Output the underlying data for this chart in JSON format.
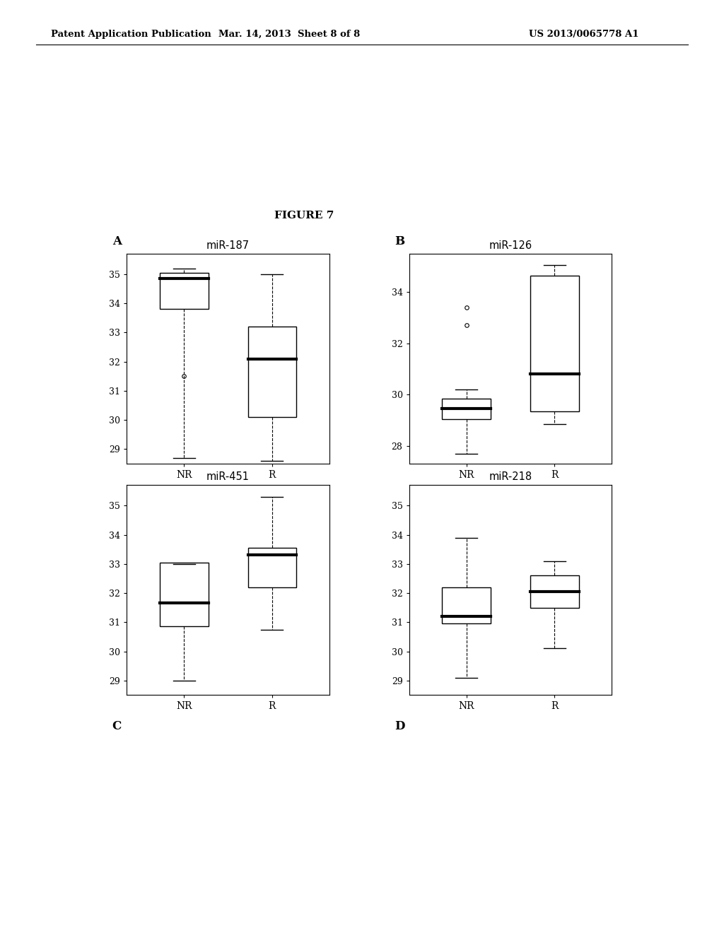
{
  "figure_title": "FIGURE 7",
  "panel_labels": [
    "A",
    "B",
    "C",
    "D"
  ],
  "plots": [
    {
      "title": "miR-187",
      "NR": {
        "whisker_low": 28.7,
        "q1": 33.8,
        "median": 34.85,
        "q3": 35.05,
        "whisker_high": 35.2,
        "outliers": [
          31.5
        ]
      },
      "R": {
        "whisker_low": 28.6,
        "q1": 30.1,
        "median": 32.1,
        "q3": 33.2,
        "whisker_high": 35.0,
        "outliers": []
      },
      "ylim": [
        28.5,
        35.7
      ],
      "yticks": [
        29,
        30,
        31,
        32,
        33,
        34,
        35
      ]
    },
    {
      "title": "miR-126",
      "NR": {
        "whisker_low": 27.7,
        "q1": 29.05,
        "median": 29.45,
        "q3": 29.85,
        "whisker_high": 30.2,
        "outliers": [
          33.4,
          32.7
        ]
      },
      "R": {
        "whisker_low": 28.85,
        "q1": 29.35,
        "median": 30.8,
        "q3": 34.65,
        "whisker_high": 35.05,
        "outliers": []
      },
      "ylim": [
        27.3,
        35.5
      ],
      "yticks": [
        28,
        30,
        32,
        34
      ]
    },
    {
      "title": "miR-451",
      "NR": {
        "whisker_low": 29.0,
        "q1": 30.85,
        "median": 31.65,
        "q3": 33.05,
        "whisker_high": 33.0,
        "outliers": []
      },
      "R": {
        "whisker_low": 30.75,
        "q1": 32.2,
        "median": 33.3,
        "q3": 33.55,
        "whisker_high": 35.3,
        "outliers": []
      },
      "ylim": [
        28.5,
        35.7
      ],
      "yticks": [
        29,
        30,
        31,
        32,
        33,
        34,
        35
      ]
    },
    {
      "title": "miR-218",
      "NR": {
        "whisker_low": 29.1,
        "q1": 30.95,
        "median": 31.2,
        "q3": 32.2,
        "whisker_high": 33.9,
        "outliers": []
      },
      "R": {
        "whisker_low": 30.1,
        "q1": 31.5,
        "median": 32.05,
        "q3": 32.6,
        "whisker_high": 33.1,
        "outliers": []
      },
      "ylim": [
        28.5,
        35.7
      ],
      "yticks": [
        29,
        30,
        31,
        32,
        33,
        34,
        35
      ]
    }
  ],
  "header_left": "Patent Application Publication",
  "header_center": "Mar. 14, 2013  Sheet 8 of 8",
  "header_right": "US 2013/0065778 A1",
  "background_color": "#ffffff"
}
